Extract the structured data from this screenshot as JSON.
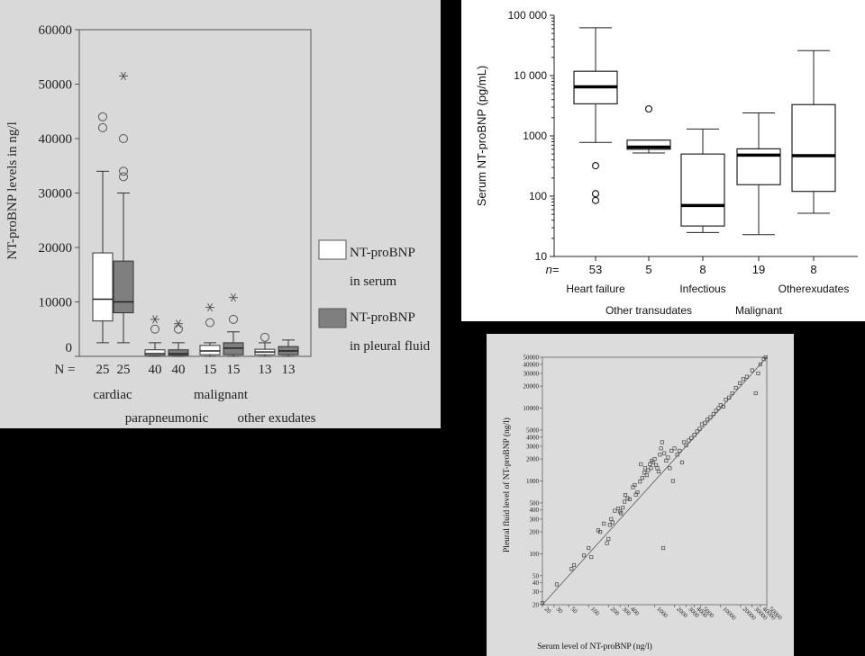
{
  "chart_data": [
    {
      "type": "boxplot",
      "ylabel": "NT-proBNP levels in ng/l",
      "ylim": [
        0,
        60000
      ],
      "yticks": [
        "0",
        "10000",
        "20000",
        "30000",
        "40000",
        "50000",
        "60000"
      ],
      "n_prefix": "N =",
      "groups": [
        {
          "name": "cardiac",
          "boxes": [
            {
              "series": "serum",
              "n": "25",
              "whisker_low": 2500,
              "q1": 6500,
              "median": 10500,
              "q3": 19000,
              "whisker_high": 34000,
              "outliers": [
                42000,
                44000
              ],
              "extremes": []
            },
            {
              "series": "pleural",
              "n": "25",
              "whisker_low": 2500,
              "q1": 8000,
              "median": 10000,
              "q3": 17500,
              "whisker_high": 30000,
              "outliers": [
                33000,
                34000,
                40000
              ],
              "extremes": [
                51500
              ]
            }
          ]
        },
        {
          "name": "malignant",
          "boxes": [
            {
              "series": "serum",
              "n": "40",
              "whisker_low": 0,
              "q1": 200,
              "median": 500,
              "q3": 1200,
              "whisker_high": 2500,
              "outliers": [
                5000
              ],
              "extremes": [
                6800
              ]
            },
            {
              "series": "pleural",
              "n": "40",
              "whisker_low": 0,
              "q1": 200,
              "median": 500,
              "q3": 1200,
              "whisker_high": 2500,
              "outliers": [
                5000
              ],
              "extremes": [
                6000
              ]
            }
          ]
        },
        {
          "name": "parapneumonic",
          "boxes": [
            {
              "series": "serum",
              "n": "15",
              "whisker_low": 0,
              "q1": 300,
              "median": 1000,
              "q3": 2000,
              "whisker_high": 2500,
              "outliers": [
                6200
              ],
              "extremes": [
                9000
              ]
            },
            {
              "series": "pleural",
              "n": "15",
              "whisker_low": 0,
              "q1": 300,
              "median": 1500,
              "q3": 2500,
              "whisker_high": 4500,
              "outliers": [
                6800
              ],
              "extremes": [
                10800
              ]
            }
          ]
        },
        {
          "name": "other exudates",
          "boxes": [
            {
              "series": "serum",
              "n": "13",
              "whisker_low": 0,
              "q1": 300,
              "median": 800,
              "q3": 1300,
              "whisker_high": 2500,
              "outliers": [
                3500
              ],
              "extremes": []
            },
            {
              "series": "pleural",
              "n": "13",
              "whisker_low": 0,
              "q1": 300,
              "median": 1000,
              "q3": 1800,
              "whisker_high": 3000,
              "outliers": [],
              "extremes": []
            }
          ]
        }
      ],
      "legend": [
        {
          "key": "serum",
          "line1": "NT-proBNP",
          "line2": "in serum",
          "color": "#ffffff"
        },
        {
          "key": "pleural",
          "line1": "NT-proBNP",
          "line2": "in pleural fluid",
          "color": "#7f7f7f"
        }
      ]
    },
    {
      "type": "boxplot",
      "scale": "log",
      "ylabel": "Serum NT-proBNP (pg/mL)",
      "ylim": [
        10,
        100000
      ],
      "yticks": [
        "10",
        "100",
        "1000",
        "10 000",
        "100 000"
      ],
      "n_prefix": "n=",
      "categories": [
        {
          "name": "Heart failure",
          "n": "53",
          "whisker_low": 780,
          "q1": 3400,
          "median": 6500,
          "q3": 11800,
          "whisker_high": 62000,
          "outliers": [
            85,
            110,
            320
          ]
        },
        {
          "name": "Other transudates",
          "n": "5",
          "whisker_low": 520,
          "q1": 600,
          "median": 650,
          "q3": 850,
          "whisker_high": 850,
          "outliers": [
            2800
          ]
        },
        {
          "name": "Infectious",
          "n": "8",
          "whisker_low": 25,
          "q1": 32,
          "median": 70,
          "q3": 500,
          "whisker_high": 1300,
          "outliers": []
        },
        {
          "name": "Malignant",
          "n": "19",
          "whisker_low": 23,
          "q1": 155,
          "median": 480,
          "q3": 610,
          "whisker_high": 2400,
          "outliers": []
        },
        {
          "name": "Otherexudates",
          "n": "8",
          "whisker_low": 52,
          "q1": 120,
          "median": 470,
          "q3": 3300,
          "whisker_high": 26000,
          "outliers": []
        }
      ]
    },
    {
      "type": "scatter",
      "scale": "log-log",
      "xlabel": "Serum level of NT-proBNP (ng/l)",
      "ylabel": "Pleural fluid level of NT-proBNP (ng/l)",
      "xlim": [
        20,
        50000
      ],
      "ylim": [
        20,
        50000
      ],
      "xticks": [
        "20",
        "30",
        "50",
        "100",
        "200",
        "300",
        "400",
        "1000",
        "2000",
        "3000",
        "4000",
        "5000",
        "10000",
        "20000",
        "30000",
        "40000",
        "50000"
      ],
      "yticks": [
        "20",
        "30",
        "40",
        "50",
        "100",
        "200",
        "300",
        "400",
        "500",
        "1000",
        "2000",
        "3000",
        "4000",
        "5000",
        "10000",
        "20000",
        "30000",
        "40000",
        "50000"
      ],
      "fit_line": [
        [
          20,
          20
        ],
        [
          50000,
          50000
        ]
      ],
      "points": [
        [
          20,
          21
        ],
        [
          33,
          38
        ],
        [
          55,
          62
        ],
        [
          60,
          70
        ],
        [
          85,
          95
        ],
        [
          100,
          120
        ],
        [
          110,
          90
        ],
        [
          140,
          210
        ],
        [
          150,
          200
        ],
        [
          170,
          260
        ],
        [
          190,
          140
        ],
        [
          200,
          160
        ],
        [
          210,
          250
        ],
        [
          220,
          300
        ],
        [
          230,
          270
        ],
        [
          250,
          390
        ],
        [
          280,
          420
        ],
        [
          300,
          380
        ],
        [
          310,
          360
        ],
        [
          330,
          430
        ],
        [
          350,
          520
        ],
        [
          360,
          640
        ],
        [
          390,
          580
        ],
        [
          420,
          560
        ],
        [
          470,
          820
        ],
        [
          500,
          880
        ],
        [
          520,
          650
        ],
        [
          550,
          700
        ],
        [
          600,
          980
        ],
        [
          620,
          1700
        ],
        [
          650,
          1100
        ],
        [
          700,
          1300
        ],
        [
          720,
          1500
        ],
        [
          760,
          1200
        ],
        [
          800,
          1400
        ],
        [
          850,
          1700
        ],
        [
          880,
          1500
        ],
        [
          900,
          1900
        ],
        [
          950,
          1800
        ],
        [
          1000,
          2000
        ],
        [
          1050,
          1650
        ],
        [
          1100,
          1500
        ],
        [
          1150,
          1350
        ],
        [
          1200,
          2300
        ],
        [
          1250,
          2800
        ],
        [
          1300,
          3400
        ],
        [
          1350,
          120
        ],
        [
          1400,
          2400
        ],
        [
          1500,
          1900
        ],
        [
          1600,
          2100
        ],
        [
          1700,
          1500
        ],
        [
          1800,
          2600
        ],
        [
          1900,
          1000
        ],
        [
          2000,
          2800
        ],
        [
          2200,
          2300
        ],
        [
          2400,
          2600
        ],
        [
          2600,
          1800
        ],
        [
          2800,
          3400
        ],
        [
          3000,
          3100
        ],
        [
          3300,
          3600
        ],
        [
          3600,
          3900
        ],
        [
          4000,
          4300
        ],
        [
          4400,
          4800
        ],
        [
          4800,
          5200
        ],
        [
          5200,
          6000
        ],
        [
          5800,
          6300
        ],
        [
          6300,
          7000
        ],
        [
          7000,
          7500
        ],
        [
          7800,
          8300
        ],
        [
          8500,
          9200
        ],
        [
          9300,
          10000
        ],
        [
          10000,
          11000
        ],
        [
          11000,
          10500
        ],
        [
          12000,
          13000
        ],
        [
          13500,
          14000
        ],
        [
          15000,
          16000
        ],
        [
          17000,
          19000
        ],
        [
          19500,
          22000
        ],
        [
          22000,
          25000
        ],
        [
          25000,
          27000
        ],
        [
          30000,
          33000
        ],
        [
          34000,
          16000
        ],
        [
          37000,
          30000
        ],
        [
          40000,
          40000
        ],
        [
          45000,
          47000
        ],
        [
          48000,
          50000
        ]
      ]
    }
  ]
}
